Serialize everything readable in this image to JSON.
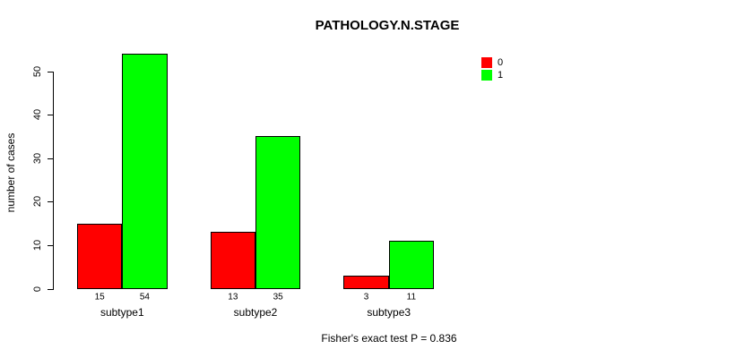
{
  "chart_data": {
    "type": "bar",
    "title": "PATHOLOGY.N.STAGE",
    "ylabel": "number of cases",
    "xlabel": "",
    "categories": [
      "subtype1",
      "subtype2",
      "subtype3"
    ],
    "series": [
      {
        "name": "0",
        "color": "#ff0000",
        "values": [
          15,
          13,
          3
        ]
      },
      {
        "name": "1",
        "color": "#00ff00",
        "values": [
          54,
          35,
          11
        ]
      }
    ],
    "value_labels": {
      "shown": true,
      "values": [
        [
          15,
          54
        ],
        [
          13,
          35
        ],
        [
          3,
          11
        ]
      ]
    },
    "yticks": [
      0,
      10,
      20,
      30,
      40,
      50
    ],
    "ylim": [
      0,
      57
    ],
    "grid": false,
    "legend": {
      "position": "top-right",
      "entries": [
        "0",
        "1"
      ]
    },
    "annotation": "Fisher's exact test P = 0.836"
  }
}
